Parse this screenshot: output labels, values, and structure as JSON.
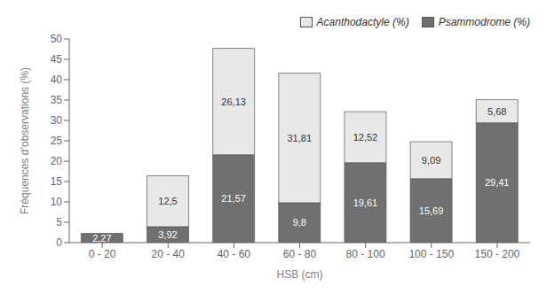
{
  "chart_data": {
    "type": "bar",
    "stacked": true,
    "data_labels": true,
    "grid": false,
    "legend": "upper right",
    "xlabel": "HSB (cm)",
    "ylabel": "Fréquences d’observations (%)",
    "categories": [
      "0 - 20",
      "20 - 40",
      "40 - 60",
      "60 - 80",
      "80 - 100",
      "100 - 150",
      "150 - 200"
    ],
    "ylim": [
      0,
      50
    ],
    "yticks": [
      0,
      5,
      10,
      15,
      20,
      25,
      30,
      35,
      40,
      45,
      50
    ],
    "series": [
      {
        "name": "Psammodrome (%)",
        "color": "#707070",
        "values": [
          2.27,
          3.92,
          21.57,
          9.8,
          19.61,
          15.69,
          29.41
        ],
        "value_labels": [
          "2,27",
          "3,92",
          "21,57",
          "9,8",
          "19,61",
          "15,69",
          "29,41"
        ]
      },
      {
        "name": "Acanthodactyle (%)",
        "color": "#e8e8e8",
        "values": [
          0.0,
          12.5,
          26.13,
          31.81,
          12.52,
          9.09,
          5.68
        ],
        "value_labels": [
          null,
          "12,5",
          "26,13",
          "31,81",
          "12,52",
          "9,09",
          "5,68"
        ]
      }
    ]
  }
}
